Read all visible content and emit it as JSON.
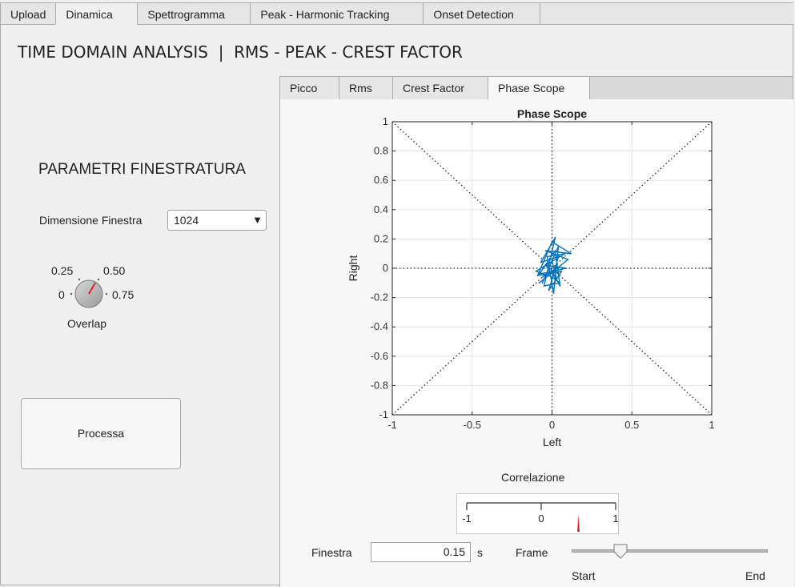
{
  "top_tabs": [
    "Upload",
    "Dinamica",
    "Spettrogramma",
    "Peak - Harmonic Tracking",
    "Onset Detection"
  ],
  "active_top_tab": "Dinamica",
  "main_title": "TIME DOMAIN ANALYSIS  |  RMS - PEAK - CREST FACTOR",
  "params": {
    "title": "PARAMETRI FINESTRATURA",
    "dim_label": "Dimensione Finestra",
    "dim_value": "1024",
    "overlap_label": "Overlap",
    "overlap_ticks": [
      "0",
      "0.25",
      "0.50",
      "0.75"
    ],
    "overlap_value": 0.5,
    "process_button": "Processa"
  },
  "sub_tabs": [
    "Picco",
    "Rms",
    "Crest Factor",
    "Phase Scope"
  ],
  "active_sub_tab": "Phase Scope",
  "chart_data": {
    "type": "scatter",
    "title": "Phase Scope",
    "xlabel": "Left",
    "ylabel": "Right",
    "xlim": [
      -1,
      1
    ],
    "ylim": [
      -1,
      1
    ],
    "xticks": [
      "-1",
      "-0.5",
      "0",
      "0.5",
      "1"
    ],
    "yticks": [
      "1",
      "0.8",
      "0.6",
      "0.4",
      "0.2",
      "0",
      "-0.2",
      "-0.4",
      "-0.6",
      "-0.8",
      "-1"
    ],
    "grid": true,
    "reference_lines": [
      "x=0",
      "y=0",
      "y=x",
      "y=-x"
    ],
    "series": [
      {
        "color": "#0072bd",
        "x": [
          -0.06,
          0.03,
          -0.08,
          0.1,
          -0.04,
          0.12,
          0.0,
          -0.09,
          0.06,
          -0.02,
          0.04,
          -0.07,
          0.02,
          -0.05,
          0.05,
          0.0,
          -0.1,
          0.08,
          -0.03,
          0.01,
          0.04,
          -0.06,
          0.0,
          0.03,
          -0.04,
          0.09,
          -0.08,
          0.02,
          0.05,
          -0.01
        ],
        "y": [
          -0.06,
          0.0,
          -0.1,
          0.06,
          0.12,
          0.1,
          0.18,
          -0.05,
          -0.02,
          -0.15,
          0.08,
          0.04,
          0.21,
          -0.12,
          -0.1,
          -0.06,
          -0.02,
          0.1,
          0.08,
          -0.17,
          0.15,
          -0.1,
          0.05,
          -0.08,
          0.02,
          0.0,
          -0.04,
          0.12,
          -0.12,
          0.0
        ]
      }
    ]
  },
  "correlation": {
    "label": "Correlazione",
    "ticks": [
      "-1",
      "0",
      "1"
    ],
    "value": 0.5,
    "needle_color": "#d62728"
  },
  "finestra": {
    "label": "Finestra",
    "value": "0.15",
    "unit": "s"
  },
  "frame": {
    "label": "Frame",
    "start": "Start",
    "end": "End",
    "position": 0.25
  }
}
